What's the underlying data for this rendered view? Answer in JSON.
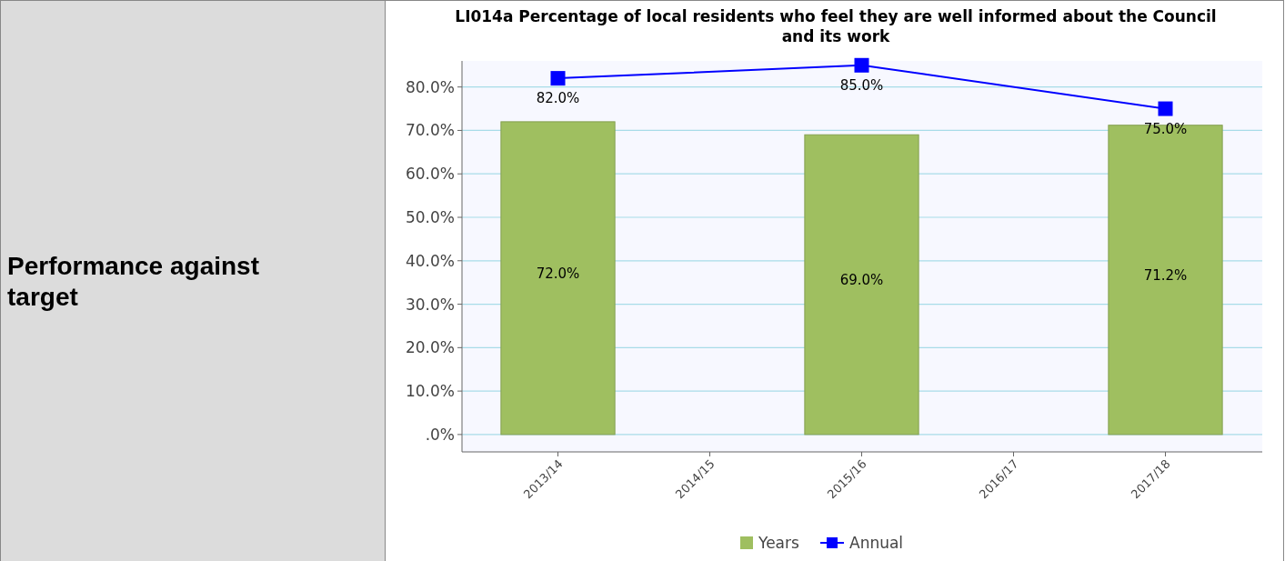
{
  "chart_data": {
    "type": "bar",
    "title": "LI014a Percentage of local residents who feel they are well informed about the Council and its work",
    "categories": [
      "2013/14",
      "2014/15",
      "2015/16",
      "2016/17",
      "2017/18"
    ],
    "series": [
      {
        "name": "Years",
        "color": "#9fbf60",
        "values": [
          72.0,
          null,
          69.0,
          null,
          71.2
        ],
        "value_labels": [
          "72.0%",
          null,
          "69.0%",
          null,
          "71.2%"
        ]
      },
      {
        "name": "Annual",
        "type": "line",
        "color": "#0000ff",
        "x": [
          "2013/14",
          "2015/16",
          "2017/18"
        ],
        "values": [
          82.0,
          85.0,
          75.0
        ],
        "value_labels": [
          "82.0%",
          "85.0%",
          "75.0%"
        ],
        "marker": "square"
      }
    ],
    "ylim": [
      -4,
      86
    ],
    "yticks": [
      {
        "value": 0,
        "label": ".0%"
      },
      {
        "value": 10,
        "label": "10.0%"
      },
      {
        "value": 20,
        "label": "20.0%"
      },
      {
        "value": 30,
        "label": "30.0%"
      },
      {
        "value": 40,
        "label": "40.0%"
      },
      {
        "value": 50,
        "label": "50.0%"
      },
      {
        "value": 60,
        "label": "60.0%"
      },
      {
        "value": 70,
        "label": "70.0%"
      },
      {
        "value": 80,
        "label": "80.0%"
      }
    ],
    "grid": "y",
    "legend": "bottom",
    "annotations": [
      "Performance against target"
    ]
  }
}
